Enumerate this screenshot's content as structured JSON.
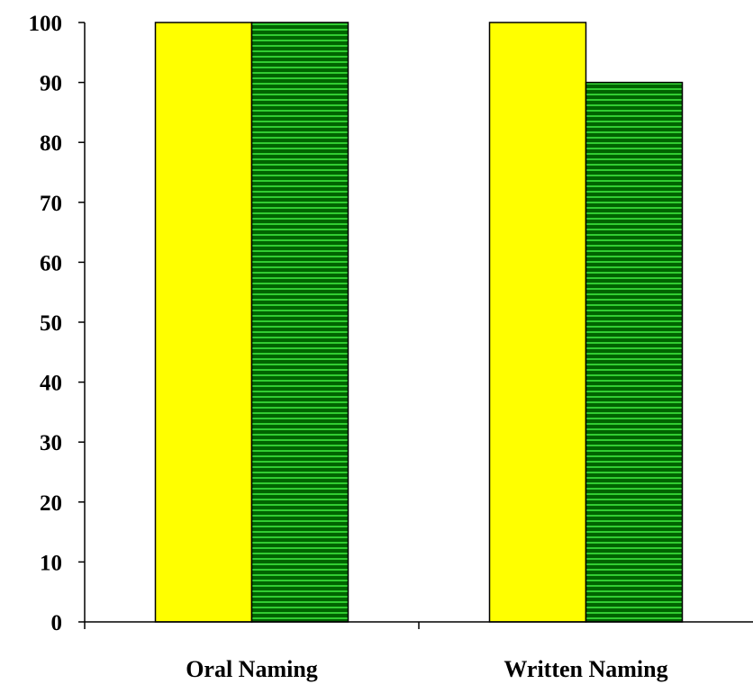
{
  "chart_data": {
    "type": "bar",
    "categories": [
      "Oral Naming",
      "Written Naming"
    ],
    "series": [
      {
        "values": [
          100,
          100
        ],
        "color": "#ffff00",
        "pattern": "solid"
      },
      {
        "values": [
          100,
          90
        ],
        "color": "#006400",
        "pattern": "horizontal-stripes",
        "stripe_color": "#32cd32"
      }
    ],
    "ylim": [
      0,
      100
    ],
    "yticks": [
      0,
      10,
      20,
      30,
      40,
      50,
      60,
      70,
      80,
      90,
      100
    ],
    "title": "",
    "xlabel": "",
    "ylabel": "",
    "grid": false,
    "legend": "none"
  }
}
